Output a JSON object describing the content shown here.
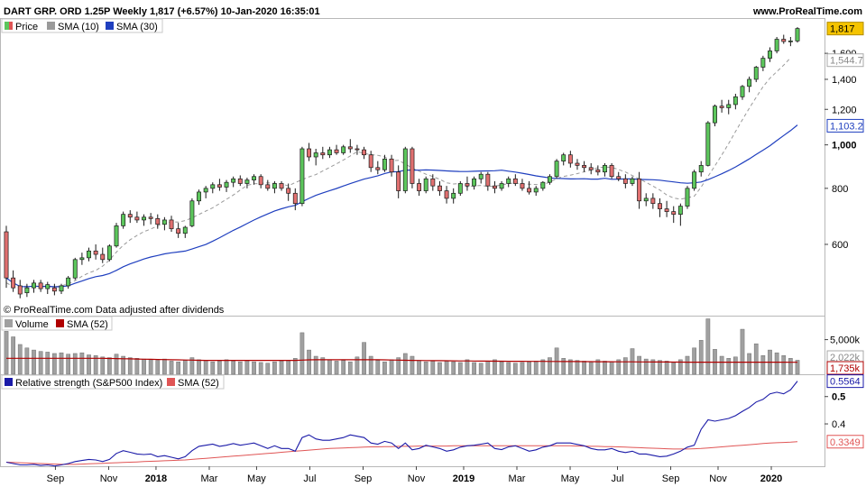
{
  "header": {
    "title": "DART GRP. ORD 1.25P Weekly 1,817 (+6.57%) 10-Jan-2020 16:35:01",
    "site": "www.ProRealTime.com"
  },
  "note": "© ProRealTime.com  Data adjusted after dividends",
  "colors": {
    "up": "#5cc65c",
    "down": "#e07070",
    "sma10": "#9a9a9a",
    "sma30": "#1f3fbf",
    "volume": "#a0a0a0",
    "volume_sma": "#b00000",
    "rs": "#1a1aa8",
    "rs_sma": "#e05555",
    "price_badge": "#f5c400"
  },
  "chart_data": [
    {
      "type": "candlestick",
      "panel": "price",
      "legend": [
        {
          "label": "Price",
          "color": "#5cc65c"
        },
        {
          "label": "SMA (10)",
          "color": "#9a9a9a"
        },
        {
          "label": "SMA (30)",
          "color": "#1f3fbf"
        }
      ],
      "y_scale": "log",
      "ylim": [
        420,
        1900
      ],
      "y_ticks": [
        "600",
        "800",
        "1,000",
        "1,200",
        "1,400",
        "1,600"
      ],
      "y_bold_tick": "1,000",
      "x_ticks": [
        "Sep",
        "Nov",
        "2018",
        "Mar",
        "May",
        "Jul",
        "Sep",
        "Nov",
        "2019",
        "Mar",
        "May",
        "Jul",
        "Sep",
        "Nov",
        "2020"
      ],
      "x_bold_ticks": [
        "2018",
        "2019",
        "2020"
      ],
      "badges": [
        {
          "label": "1,817",
          "value": 1817,
          "style": "price"
        },
        {
          "label": "1,544.7",
          "value": 1544.7,
          "style": "sma10"
        },
        {
          "label": "1,103.2",
          "value": 1103.2,
          "style": "sma30"
        }
      ],
      "ohlc": [
        [
          640,
          660,
          480,
          505
        ],
        [
          505,
          525,
          470,
          480
        ],
        [
          485,
          500,
          455,
          465
        ],
        [
          468,
          490,
          458,
          480
        ],
        [
          480,
          500,
          468,
          492
        ],
        [
          492,
          500,
          470,
          478
        ],
        [
          478,
          495,
          465,
          488
        ],
        [
          480,
          490,
          462,
          472
        ],
        [
          472,
          490,
          465,
          485
        ],
        [
          485,
          510,
          478,
          505
        ],
        [
          505,
          560,
          500,
          555
        ],
        [
          555,
          575,
          540,
          560
        ],
        [
          560,
          590,
          550,
          580
        ],
        [
          580,
          600,
          555,
          570
        ],
        [
          570,
          590,
          545,
          555
        ],
        [
          555,
          600,
          550,
          595
        ],
        [
          595,
          670,
          590,
          660
        ],
        [
          660,
          710,
          650,
          700
        ],
        [
          700,
          715,
          670,
          690
        ],
        [
          690,
          710,
          670,
          680
        ],
        [
          680,
          700,
          660,
          690
        ],
        [
          690,
          705,
          665,
          685
        ],
        [
          685,
          700,
          650,
          665
        ],
        [
          665,
          690,
          645,
          680
        ],
        [
          680,
          695,
          640,
          650
        ],
        [
          650,
          670,
          620,
          635
        ],
        [
          635,
          660,
          620,
          655
        ],
        [
          660,
          760,
          655,
          750
        ],
        [
          750,
          795,
          735,
          785
        ],
        [
          785,
          810,
          760,
          800
        ],
        [
          800,
          825,
          780,
          815
        ],
        [
          815,
          840,
          790,
          805
        ],
        [
          805,
          835,
          785,
          825
        ],
        [
          825,
          850,
          805,
          840
        ],
        [
          840,
          855,
          810,
          820
        ],
        [
          820,
          845,
          800,
          835
        ],
        [
          835,
          860,
          815,
          850
        ],
        [
          850,
          860,
          800,
          815
        ],
        [
          815,
          835,
          790,
          800
        ],
        [
          800,
          830,
          780,
          820
        ],
        [
          820,
          830,
          790,
          800
        ],
        [
          800,
          820,
          750,
          780
        ],
        [
          780,
          800,
          715,
          740
        ],
        [
          740,
          990,
          730,
          980
        ],
        [
          980,
          1010,
          920,
          940
        ],
        [
          940,
          980,
          900,
          960
        ],
        [
          960,
          990,
          930,
          950
        ],
        [
          950,
          990,
          935,
          975
        ],
        [
          975,
          1000,
          950,
          960
        ],
        [
          960,
          1000,
          950,
          990
        ],
        [
          990,
          1030,
          960,
          980
        ],
        [
          980,
          1000,
          950,
          975
        ],
        [
          975,
          990,
          930,
          950
        ],
        [
          950,
          970,
          870,
          890
        ],
        [
          890,
          920,
          860,
          880
        ],
        [
          880,
          950,
          870,
          930
        ],
        [
          930,
          950,
          850,
          870
        ],
        [
          870,
          900,
          760,
          790
        ],
        [
          790,
          990,
          780,
          980
        ],
        [
          980,
          990,
          800,
          820
        ],
        [
          820,
          840,
          770,
          790
        ],
        [
          790,
          850,
          780,
          840
        ],
        [
          840,
          860,
          790,
          810
        ],
        [
          810,
          830,
          770,
          790
        ],
        [
          790,
          810,
          740,
          760
        ],
        [
          760,
          800,
          740,
          780
        ],
        [
          780,
          830,
          770,
          820
        ],
        [
          820,
          850,
          790,
          810
        ],
        [
          810,
          850,
          795,
          840
        ],
        [
          840,
          870,
          820,
          860
        ],
        [
          860,
          870,
          790,
          810
        ],
        [
          810,
          830,
          780,
          800
        ],
        [
          800,
          830,
          790,
          820
        ],
        [
          820,
          850,
          805,
          840
        ],
        [
          840,
          860,
          810,
          820
        ],
        [
          820,
          840,
          790,
          800
        ],
        [
          800,
          830,
          775,
          785
        ],
        [
          785,
          810,
          770,
          800
        ],
        [
          800,
          830,
          790,
          825
        ],
        [
          825,
          860,
          815,
          850
        ],
        [
          850,
          930,
          840,
          920
        ],
        [
          920,
          960,
          900,
          950
        ],
        [
          950,
          970,
          890,
          910
        ],
        [
          910,
          930,
          880,
          900
        ],
        [
          900,
          920,
          870,
          890
        ],
        [
          890,
          910,
          860,
          880
        ],
        [
          880,
          900,
          855,
          870
        ],
        [
          870,
          910,
          850,
          900
        ],
        [
          900,
          910,
          840,
          850
        ],
        [
          850,
          870,
          830,
          840
        ],
        [
          840,
          860,
          800,
          820
        ],
        [
          820,
          850,
          810,
          840
        ],
        [
          840,
          870,
          720,
          750
        ],
        [
          750,
          780,
          730,
          760
        ],
        [
          760,
          780,
          720,
          740
        ],
        [
          740,
          760,
          690,
          720
        ],
        [
          720,
          750,
          690,
          710
        ],
        [
          710,
          730,
          670,
          700
        ],
        [
          700,
          740,
          660,
          730
        ],
        [
          730,
          810,
          720,
          800
        ],
        [
          800,
          880,
          790,
          870
        ],
        [
          870,
          920,
          850,
          900
        ],
        [
          900,
          1130,
          895,
          1120
        ],
        [
          1120,
          1230,
          1100,
          1220
        ],
        [
          1220,
          1260,
          1180,
          1210
        ],
        [
          1210,
          1260,
          1170,
          1230
        ],
        [
          1230,
          1300,
          1200,
          1280
        ],
        [
          1280,
          1360,
          1260,
          1350
        ],
        [
          1350,
          1420,
          1310,
          1400
        ],
        [
          1400,
          1500,
          1380,
          1490
        ],
        [
          1490,
          1580,
          1460,
          1560
        ],
        [
          1560,
          1650,
          1530,
          1620
        ],
        [
          1620,
          1740,
          1600,
          1720
        ],
        [
          1720,
          1760,
          1680,
          1700
        ],
        [
          1700,
          1740,
          1660,
          1705
        ],
        [
          1705,
          1830,
          1690,
          1817
        ]
      ]
    },
    {
      "type": "bar",
      "panel": "volume",
      "legend": [
        {
          "label": "Volume",
          "color": "#a0a0a0"
        },
        {
          "label": "SMA (52)",
          "color": "#b00000"
        }
      ],
      "y_ticks": [
        "5,000k"
      ],
      "badges": [
        {
          "label": "2,022k",
          "value": 2022,
          "style": "volume"
        },
        {
          "label": "1,735k",
          "value": 1735,
          "style": "volume_sma"
        }
      ],
      "values_k": [
        6200,
        5400,
        4300,
        3800,
        3500,
        3300,
        3200,
        3000,
        3100,
        2900,
        3000,
        3100,
        2800,
        2700,
        2500,
        2400,
        2900,
        2600,
        2400,
        2300,
        2200,
        2100,
        2000,
        2200,
        1900,
        1800,
        2000,
        2400,
        2100,
        2000,
        1800,
        1900,
        2100,
        1900,
        1800,
        2000,
        1800,
        1700,
        1600,
        1800,
        1900,
        2000,
        2300,
        6000,
        3500,
        2600,
        2400,
        2100,
        1900,
        2000,
        1800,
        2500,
        4600,
        2600,
        2000,
        1800,
        2100,
        2400,
        3000,
        2600,
        2000,
        1800,
        1900,
        1700,
        1900,
        1800,
        1700,
        2100,
        1700,
        1600,
        1900,
        2100,
        1800,
        1700,
        1600,
        1700,
        1800,
        1900,
        2100,
        2400,
        3800,
        2300,
        2100,
        2000,
        1900,
        1700,
        2100,
        1900,
        1800,
        2100,
        2400,
        3700,
        2600,
        2200,
        2100,
        2000,
        1900,
        1700,
        2100,
        2600,
        3800,
        4900,
        8000,
        3600,
        2600,
        2300,
        2500,
        6500,
        3000,
        4400,
        2700,
        3500,
        3100,
        2700,
        2300,
        2022
      ],
      "sma_k": [
        2300,
        2300,
        2300,
        2300,
        2300,
        2300,
        2300,
        2300,
        2300,
        2300,
        2300,
        2300,
        2300,
        2300,
        2300,
        2280,
        2260,
        2240,
        2220,
        2200,
        2180,
        2160,
        2140,
        2120,
        2100,
        2080,
        2060,
        2040,
        2020,
        2000,
        2000,
        2000,
        2000,
        2000,
        2000,
        2000,
        2000,
        2000,
        2000,
        2000,
        2000,
        2000,
        2000,
        2050,
        2080,
        2100,
        2100,
        2100,
        2100,
        2100,
        2100,
        2100,
        2100,
        2100,
        2100,
        2080,
        2060,
        2040,
        2020,
        2000,
        1990,
        1980,
        1970,
        1960,
        1950,
        1940,
        1930,
        1920,
        1910,
        1900,
        1895,
        1890,
        1885,
        1880,
        1875,
        1870,
        1865,
        1860,
        1855,
        1850,
        1845,
        1840,
        1835,
        1830,
        1825,
        1820,
        1815,
        1810,
        1805,
        1800,
        1795,
        1790,
        1785,
        1780,
        1775,
        1770,
        1765,
        1760,
        1755,
        1750,
        1745,
        1740,
        1740,
        1740,
        1740,
        1740,
        1740,
        1740,
        1740,
        1740,
        1740,
        1740,
        1740,
        1738,
        1736,
        1735
      ]
    },
    {
      "type": "line",
      "panel": "relative-strength",
      "legend": [
        {
          "label": "Relative strength (S&P500 Index)",
          "color": "#1a1aa8"
        },
        {
          "label": "SMA (52)",
          "color": "#e05555"
        }
      ],
      "y_ticks": [
        "0.4",
        "0.5"
      ],
      "y_bold_tick": "0.5",
      "badges": [
        {
          "label": "0.5564",
          "value": 0.5564,
          "style": "rs"
        },
        {
          "label": "0.3349",
          "value": 0.3349,
          "style": "rs_sma"
        }
      ],
      "series": [
        {
          "values": [
            0.26,
            0.255,
            0.25,
            0.25,
            0.252,
            0.248,
            0.25,
            0.246,
            0.25,
            0.255,
            0.262,
            0.266,
            0.27,
            0.268,
            0.262,
            0.27,
            0.292,
            0.302,
            0.296,
            0.29,
            0.288,
            0.29,
            0.28,
            0.284,
            0.278,
            0.272,
            0.28,
            0.302,
            0.318,
            0.322,
            0.326,
            0.318,
            0.322,
            0.328,
            0.322,
            0.326,
            0.33,
            0.32,
            0.31,
            0.32,
            0.31,
            0.31,
            0.3,
            0.35,
            0.36,
            0.345,
            0.34,
            0.34,
            0.345,
            0.35,
            0.36,
            0.355,
            0.35,
            0.33,
            0.326,
            0.336,
            0.33,
            0.31,
            0.33,
            0.305,
            0.31,
            0.322,
            0.316,
            0.31,
            0.3,
            0.305,
            0.315,
            0.32,
            0.322,
            0.326,
            0.33,
            0.31,
            0.306,
            0.316,
            0.32,
            0.31,
            0.3,
            0.305,
            0.315,
            0.32,
            0.33,
            0.33,
            0.33,
            0.325,
            0.32,
            0.31,
            0.305,
            0.305,
            0.31,
            0.3,
            0.295,
            0.3,
            0.29,
            0.29,
            0.285,
            0.28,
            0.282,
            0.29,
            0.3,
            0.315,
            0.322,
            0.38,
            0.415,
            0.41,
            0.415,
            0.42,
            0.43,
            0.446,
            0.46,
            0.48,
            0.49,
            0.51,
            0.516,
            0.51,
            0.525,
            0.5564
          ]
        },
        {
          "values": [
            0.26,
            0.259,
            0.258,
            0.257,
            0.256,
            0.255,
            0.254,
            0.253,
            0.252,
            0.252,
            0.252,
            0.253,
            0.254,
            0.255,
            0.256,
            0.257,
            0.258,
            0.259,
            0.26,
            0.261,
            0.262,
            0.263,
            0.264,
            0.265,
            0.266,
            0.267,
            0.268,
            0.27,
            0.272,
            0.274,
            0.276,
            0.278,
            0.28,
            0.282,
            0.284,
            0.286,
            0.288,
            0.29,
            0.292,
            0.294,
            0.296,
            0.298,
            0.3,
            0.302,
            0.304,
            0.306,
            0.308,
            0.31,
            0.311,
            0.312,
            0.313,
            0.314,
            0.315,
            0.316,
            0.316,
            0.317,
            0.317,
            0.318,
            0.318,
            0.318,
            0.319,
            0.319,
            0.319,
            0.319,
            0.319,
            0.32,
            0.32,
            0.32,
            0.32,
            0.32,
            0.32,
            0.32,
            0.32,
            0.32,
            0.32,
            0.32,
            0.32,
            0.32,
            0.32,
            0.32,
            0.32,
            0.32,
            0.32,
            0.319,
            0.319,
            0.318,
            0.318,
            0.317,
            0.317,
            0.316,
            0.315,
            0.314,
            0.313,
            0.312,
            0.311,
            0.31,
            0.309,
            0.308,
            0.308,
            0.308,
            0.309,
            0.31,
            0.312,
            0.314,
            0.316,
            0.318,
            0.32,
            0.322,
            0.324,
            0.326,
            0.328,
            0.33,
            0.331,
            0.332,
            0.333,
            0.3349
          ]
        }
      ]
    }
  ]
}
